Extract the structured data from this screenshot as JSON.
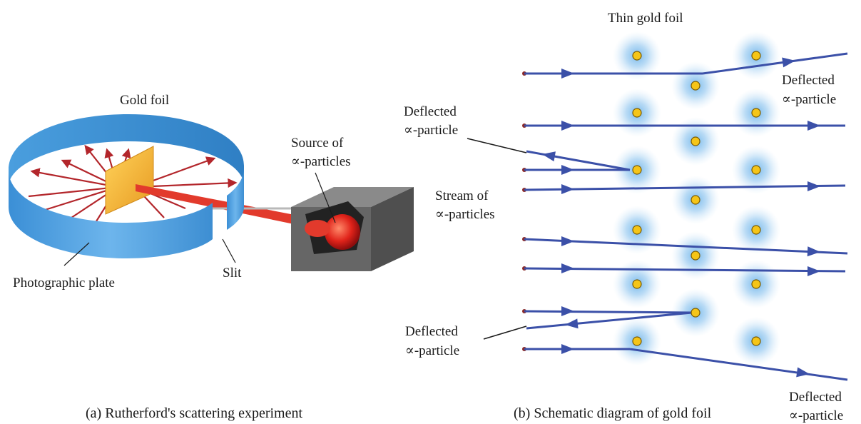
{
  "panel_a": {
    "labels": {
      "gold_foil": "Gold foil",
      "source_line1": "Source of",
      "source_line2": "∝-particles",
      "photographic_plate": "Photographic plate",
      "slit": "Slit"
    },
    "caption": "(a) Rutherford's scattering experiment"
  },
  "panel_b": {
    "title": "Thin gold foil",
    "labels": {
      "deflected_left_top_line1": "Deflected",
      "deflected_left_top_line2": "∝-particle",
      "stream_line1": "Stream of",
      "stream_line2": "∝-particles",
      "deflected_left_bottom_line1": "Deflected",
      "deflected_left_bottom_line2": "∝-particle",
      "deflected_right_top_line1": "Deflected",
      "deflected_right_top_line2": "∝-particle",
      "deflected_right_bottom_line1": "Deflected",
      "deflected_right_bottom_line2": "∝-particle"
    },
    "caption": "(b) Schematic diagram of gold foil"
  },
  "colors": {
    "ring_blue": "#3f8fd3",
    "ray_red": "#c0282d",
    "beam_red": "#e23a2c",
    "foil_gold": "#f2b33a",
    "box_gray": "#6a6a6a",
    "path_blue": "#3b50a8",
    "nucleus_yellow": "#f5c518",
    "halo_blue": "#6fb4ea"
  }
}
